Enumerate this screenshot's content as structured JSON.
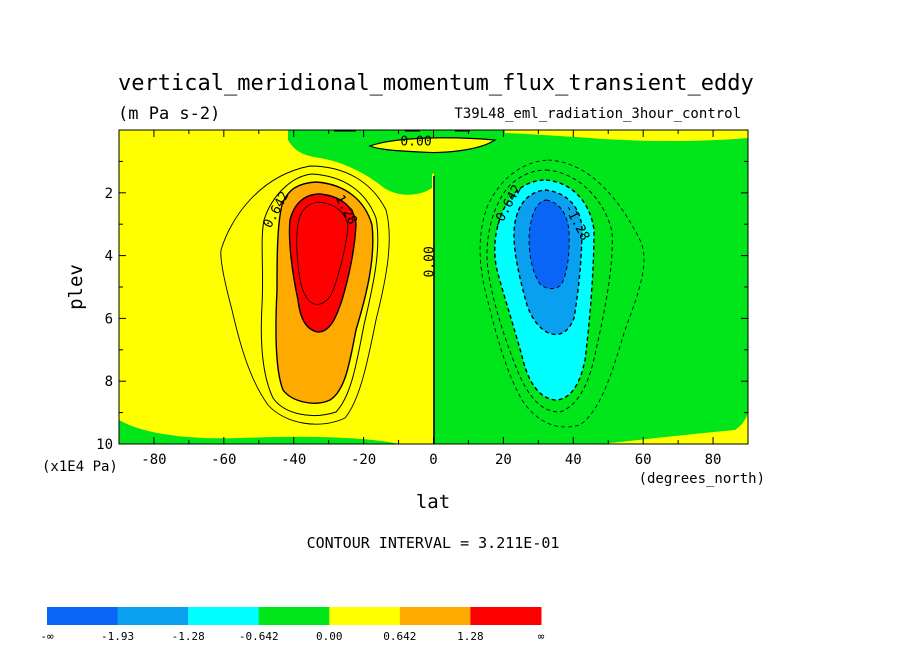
{
  "chart_data": {
    "type": "contour",
    "title": "vertical_meridional_momentum_flux_transient_eddy",
    "units": "(m Pa s-2)",
    "dataset": "T39L48_eml_radiation_3hour_control",
    "xlabel": "lat",
    "xunits": "(degrees_north)",
    "ylabel": "plev",
    "yunits": "(x1E4 Pa)",
    "xlim": [
      -90,
      90
    ],
    "ylim": [
      10,
      0
    ],
    "xticks": [
      "-80",
      "-60",
      "-40",
      "-20",
      "0",
      "20",
      "40",
      "60",
      "80"
    ],
    "yticks": [
      "2",
      "4",
      "6",
      "8",
      "10"
    ],
    "contour_interval_text": "CONTOUR INTERVAL = 3.211E-01",
    "contour_labels": [
      {
        "text": "0.00",
        "lat": -5,
        "plev": 0.5
      },
      {
        "text": "0.642",
        "lat": -44,
        "plev": 2.6
      },
      {
        "text": "1.28",
        "lat": -26,
        "plev": 2.6
      },
      {
        "text": "0.00",
        "lat": 0,
        "plev": 4.2
      },
      {
        "text": "-0.642",
        "lat": 22,
        "plev": 2.5
      },
      {
        "text": "-1.28",
        "lat": 40,
        "plev": 3.0
      }
    ],
    "features": [
      {
        "name": "positive max",
        "lat": -32,
        "plev": 3.5
      },
      {
        "name": "negative min",
        "lat": 32,
        "plev": 3.5
      }
    ],
    "colorbar": {
      "labels": [
        "-∞",
        "-1.93",
        "-1.28",
        "-0.642",
        "0.00",
        "0.642",
        "1.28",
        "∞"
      ],
      "colors": [
        "#0a64f5",
        "#0aa0f0",
        "#00ffff",
        "#00e61a",
        "#ffff00",
        "#ffaa00",
        "#ff0000"
      ]
    }
  }
}
